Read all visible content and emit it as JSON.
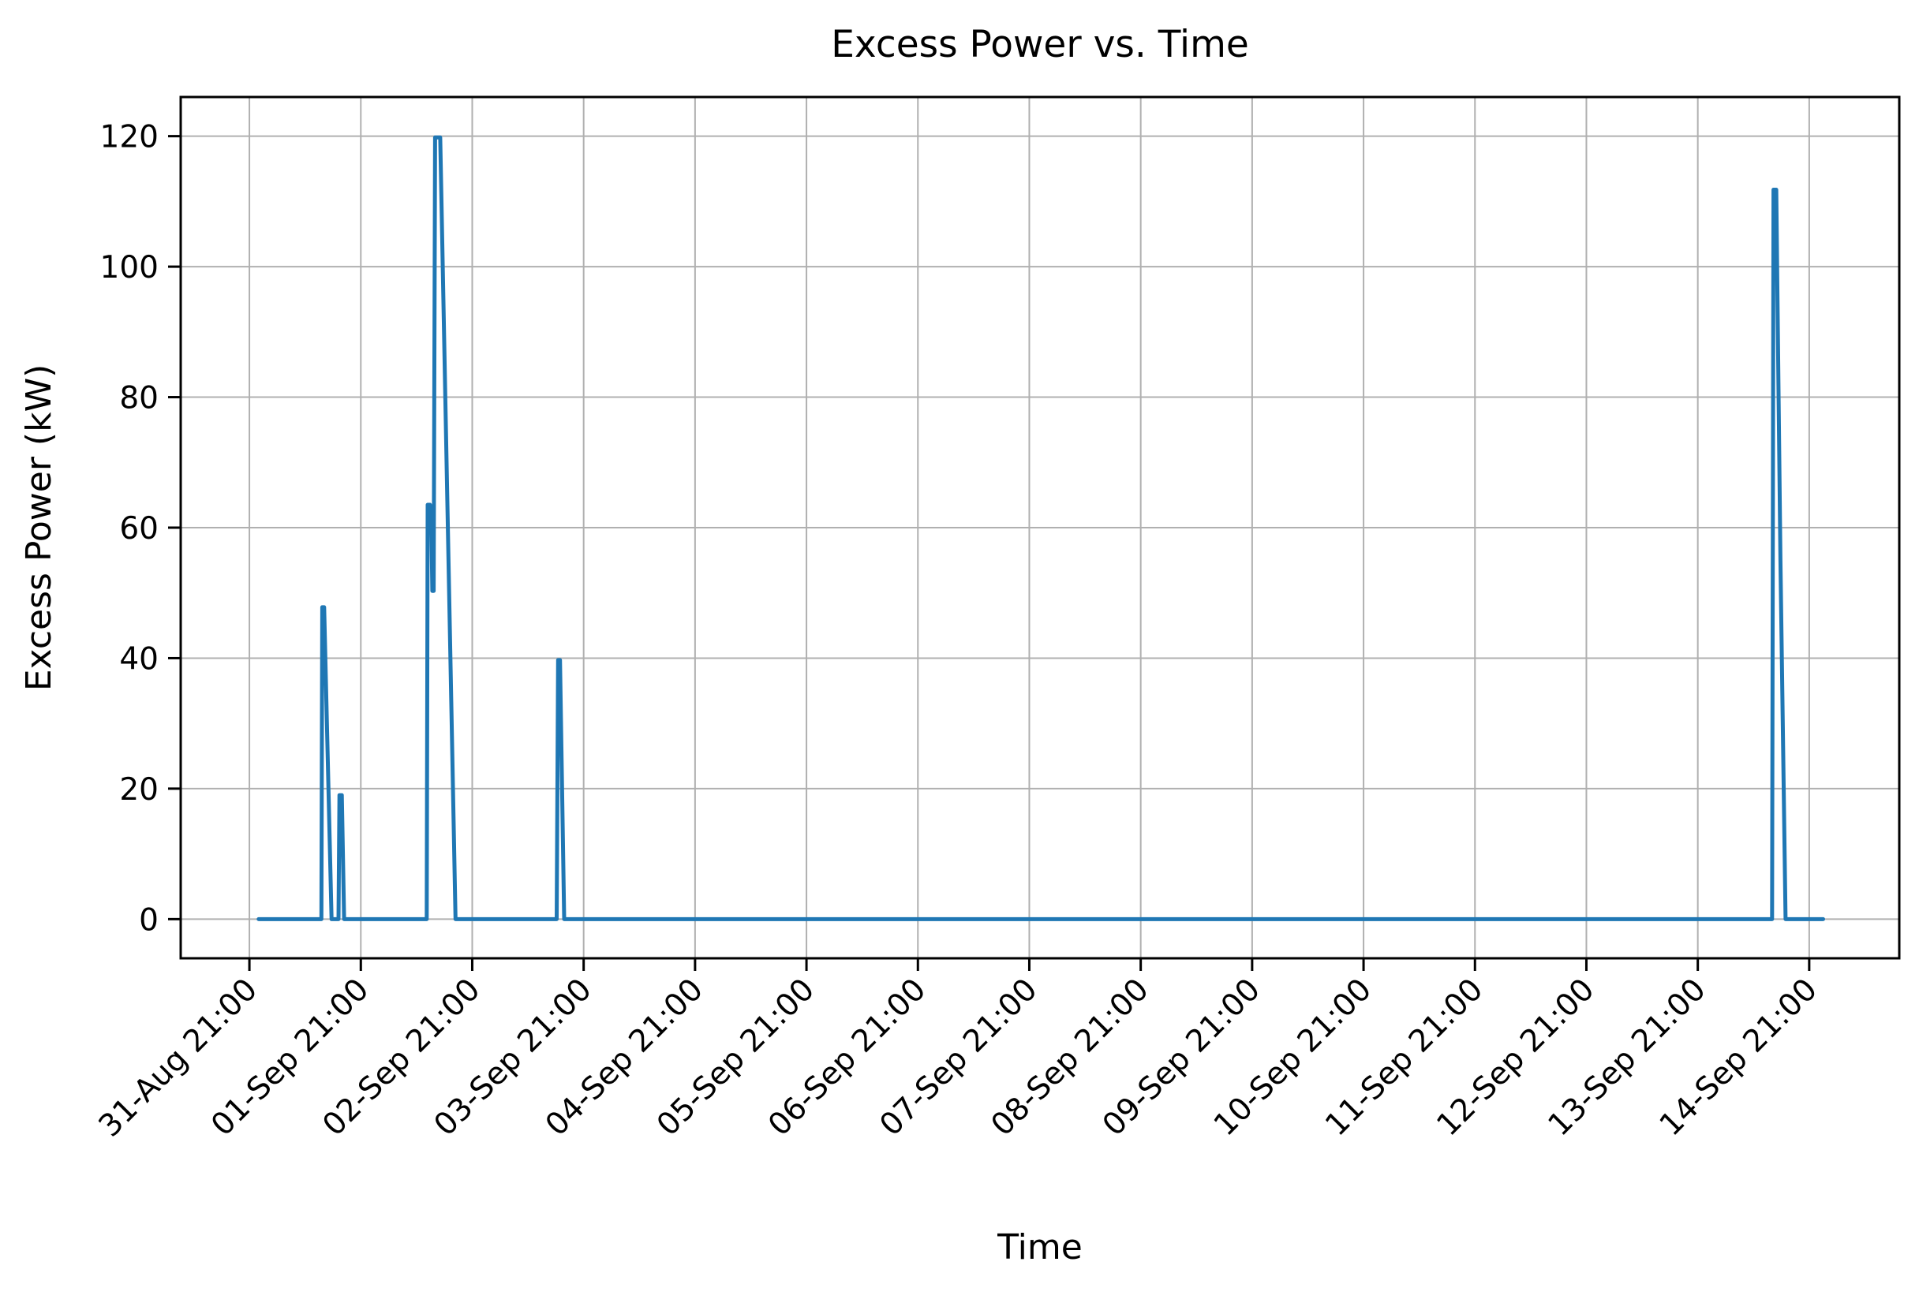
{
  "figure": {
    "background": "#ffffff"
  },
  "chart_data": {
    "type": "line",
    "title": "Excess Power vs. Time",
    "xlabel": "Time",
    "ylabel": "Excess Power (kW)",
    "grid": true,
    "legend": "none",
    "y_ticks": [
      0,
      20,
      40,
      60,
      80,
      100,
      120
    ],
    "ylim": [
      -6,
      126
    ],
    "x_tick_labels": [
      "31-Aug 21:00",
      "01-Sep 21:00",
      "02-Sep 21:00",
      "03-Sep 21:00",
      "04-Sep 21:00",
      "05-Sep 21:00",
      "06-Sep 21:00",
      "07-Sep 21:00",
      "08-Sep 21:00",
      "09-Sep 21:00",
      "10-Sep 21:00",
      "11-Sep 21:00",
      "12-Sep 21:00",
      "13-Sep 21:00",
      "14-Sep 21:00"
    ],
    "x_ticks_hours": [
      0,
      24,
      48,
      72,
      96,
      120,
      144,
      168,
      192,
      216,
      240,
      264,
      288,
      312,
      336
    ],
    "x_unit": "hours since 31-Aug 21:00",
    "xlim_hours": [
      -14.8,
      355.4
    ],
    "colors": {
      "line": "#1f77b4",
      "grid": "#b0b0b0",
      "axes": "#000000",
      "background": "#ffffff"
    },
    "series": [
      {
        "name": "Excess Power",
        "color": "#1f77b4",
        "points": [
          [
            2.0,
            0
          ],
          [
            15.5,
            0
          ],
          [
            15.7,
            47.8
          ],
          [
            16.1,
            47.8
          ],
          [
            17.7,
            0
          ],
          [
            19.2,
            0
          ],
          [
            19.4,
            19
          ],
          [
            19.9,
            19
          ],
          [
            20.4,
            0
          ],
          [
            38.2,
            0
          ],
          [
            38.4,
            63.5
          ],
          [
            38.9,
            63.5
          ],
          [
            39.0,
            61
          ],
          [
            39.2,
            61
          ],
          [
            39.4,
            50.3
          ],
          [
            39.7,
            50.3
          ],
          [
            40.0,
            119.8
          ],
          [
            41.1,
            119.8
          ],
          [
            44.4,
            0
          ],
          [
            66.2,
            0
          ],
          [
            66.5,
            39.7
          ],
          [
            66.9,
            39.7
          ],
          [
            67.8,
            0
          ],
          [
            328.0,
            0
          ],
          [
            328.3,
            111.8
          ],
          [
            328.9,
            111.8
          ],
          [
            329.8,
            55
          ],
          [
            330.9,
            0
          ],
          [
            339.0,
            0
          ]
        ]
      }
    ],
    "annotations": {
      "spike_peaks": [
        {
          "approx_time": "01-Sep ~13:00",
          "peak_kw": 48
        },
        {
          "approx_time": "01-Sep ~17:00",
          "peak_kw": 19
        },
        {
          "approx_time": "02-Sep ~11:30",
          "peak_kw": 63.5
        },
        {
          "approx_time": "02-Sep ~13:00-14:00",
          "peak_kw": 120
        },
        {
          "approx_time": "03-Sep ~16:00",
          "peak_kw": 40
        },
        {
          "approx_time": "14-Sep ~13:00-14:00",
          "peak_kw": 112
        }
      ],
      "baseline_kw": 0
    }
  }
}
